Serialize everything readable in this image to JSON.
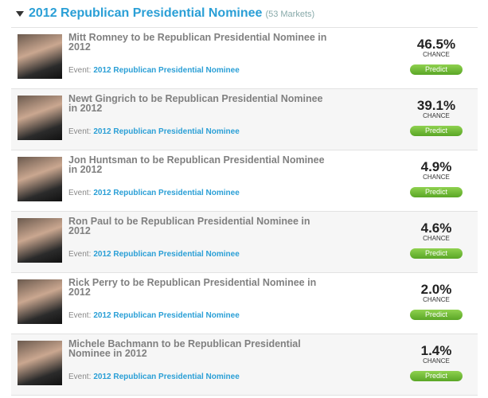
{
  "header": {
    "title": "2012 Republican Presidential Nominee",
    "count": "(53 Markets)"
  },
  "markets": [
    {
      "title": "Mitt Romney to be Republican Presidential Nominee in 2012",
      "event_label": "Event:",
      "event": "2012 Republican Presidential Nominee",
      "chance": "46.5%",
      "chance_label": "CHANCE",
      "button": "Predict"
    },
    {
      "title": "Newt Gingrich to be Republican Presidential Nominee in 2012",
      "event_label": "Event:",
      "event": "2012 Republican Presidential Nominee",
      "chance": "39.1%",
      "chance_label": "CHANCE",
      "button": "Predict"
    },
    {
      "title": "Jon Huntsman to be Republican Presidential Nominee in 2012",
      "event_label": "Event:",
      "event": "2012 Republican Presidential Nominee",
      "chance": "4.9%",
      "chance_label": "CHANCE",
      "button": "Predict"
    },
    {
      "title": "Ron Paul to be Republican Presidential Nominee in 2012",
      "event_label": "Event:",
      "event": "2012 Republican Presidential Nominee",
      "chance": "4.6%",
      "chance_label": "CHANCE",
      "button": "Predict"
    },
    {
      "title": "Rick Perry to be Republican Presidential Nominee in 2012",
      "event_label": "Event:",
      "event": "2012 Republican Presidential Nominee",
      "chance": "2.0%",
      "chance_label": "CHANCE",
      "button": "Predict"
    },
    {
      "title": "Michele Bachmann to be Republican Presidential Nominee in 2012",
      "event_label": "Event:",
      "event": "2012 Republican Presidential Nominee",
      "chance": "1.4%",
      "chance_label": "CHANCE",
      "button": "Predict"
    }
  ]
}
